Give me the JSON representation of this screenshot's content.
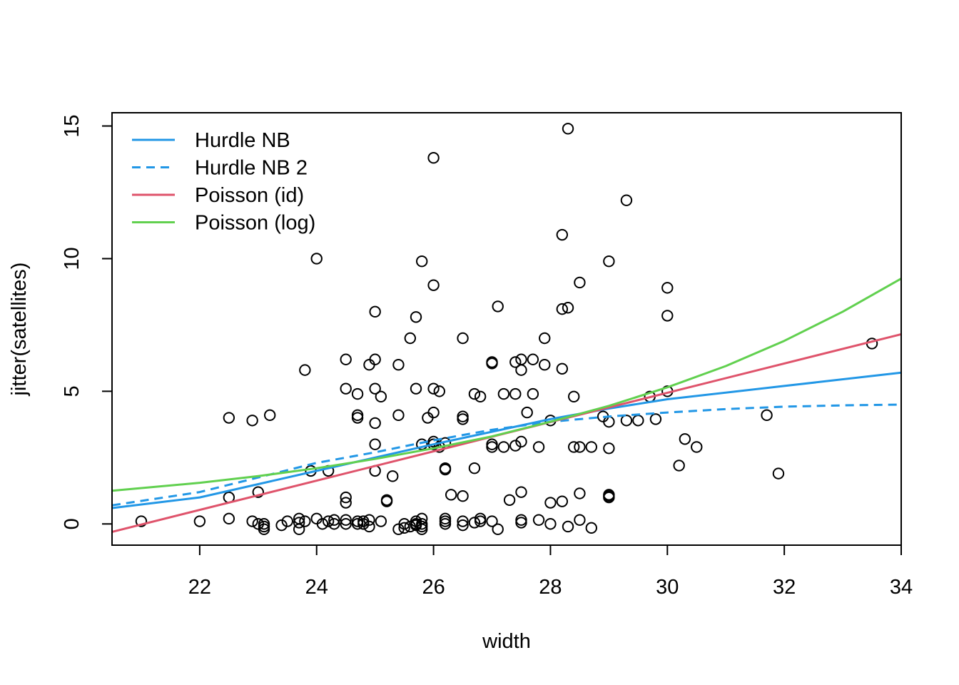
{
  "chart_data": {
    "type": "scatter",
    "title": "",
    "xlabel": "width",
    "ylabel": "jitter(satellites)",
    "xlim": [
      20.5,
      34
    ],
    "ylim": [
      -0.8,
      15.5
    ],
    "x_ticks": [
      22,
      24,
      26,
      28,
      30,
      32,
      34
    ],
    "y_ticks": [
      0,
      5,
      10,
      15
    ],
    "grid": false,
    "legend_position": "top-left",
    "points": [
      [
        21.0,
        0.1
      ],
      [
        22.0,
        0.1
      ],
      [
        22.5,
        4.0
      ],
      [
        22.5,
        1.0
      ],
      [
        22.5,
        0.2
      ],
      [
        22.9,
        3.9
      ],
      [
        22.9,
        0.1
      ],
      [
        23.0,
        1.2
      ],
      [
        23.0,
        0.0
      ],
      [
        23.1,
        -0.1
      ],
      [
        23.1,
        -0.2
      ],
      [
        23.1,
        0.0
      ],
      [
        23.2,
        4.1
      ],
      [
        23.4,
        -0.05
      ],
      [
        23.5,
        0.1
      ],
      [
        23.7,
        0.2
      ],
      [
        23.7,
        -0.2
      ],
      [
        23.7,
        0.05
      ],
      [
        23.8,
        5.8
      ],
      [
        23.8,
        0.1
      ],
      [
        23.9,
        2.0
      ],
      [
        24.0,
        10.0
      ],
      [
        24.0,
        0.2
      ],
      [
        24.1,
        0.0
      ],
      [
        24.2,
        2.0
      ],
      [
        24.2,
        0.1
      ],
      [
        24.3,
        0.15
      ],
      [
        24.3,
        0.0
      ],
      [
        24.5,
        6.2
      ],
      [
        24.5,
        5.1
      ],
      [
        24.5,
        1.0
      ],
      [
        24.5,
        0.8
      ],
      [
        24.5,
        0.15
      ],
      [
        24.5,
        0.0
      ],
      [
        24.7,
        4.9
      ],
      [
        24.7,
        4.1
      ],
      [
        24.7,
        4.0
      ],
      [
        24.7,
        0.1
      ],
      [
        24.7,
        0.0
      ],
      [
        24.8,
        0.0
      ],
      [
        24.8,
        0.1
      ],
      [
        24.9,
        6.0
      ],
      [
        24.9,
        0.15
      ],
      [
        24.9,
        -0.1
      ],
      [
        25.0,
        8.0
      ],
      [
        25.0,
        6.2
      ],
      [
        25.0,
        5.1
      ],
      [
        25.0,
        3.8
      ],
      [
        25.0,
        3.0
      ],
      [
        25.0,
        2.0
      ],
      [
        25.1,
        4.8
      ],
      [
        25.1,
        0.1
      ],
      [
        25.2,
        0.9
      ],
      [
        25.2,
        0.85
      ],
      [
        25.3,
        1.8
      ],
      [
        25.4,
        6.0
      ],
      [
        25.4,
        4.1
      ],
      [
        25.4,
        -0.2
      ],
      [
        25.5,
        0.0
      ],
      [
        25.5,
        -0.15
      ],
      [
        25.6,
        7.0
      ],
      [
        25.6,
        -0.1
      ],
      [
        25.7,
        7.8
      ],
      [
        25.7,
        5.1
      ],
      [
        25.7,
        0.0
      ],
      [
        25.7,
        0.1
      ],
      [
        25.7,
        -0.05
      ],
      [
        25.8,
        9.9
      ],
      [
        25.8,
        3.0
      ],
      [
        25.8,
        0.2
      ],
      [
        25.8,
        0.0
      ],
      [
        25.8,
        -0.1
      ],
      [
        25.8,
        -0.2
      ],
      [
        25.9,
        4.0
      ],
      [
        26.0,
        13.8
      ],
      [
        26.0,
        9.0
      ],
      [
        26.0,
        5.1
      ],
      [
        26.0,
        4.2
      ],
      [
        26.0,
        3.1
      ],
      [
        26.0,
        3.0
      ],
      [
        26.1,
        5.0
      ],
      [
        26.1,
        2.9
      ],
      [
        26.2,
        3.05
      ],
      [
        26.2,
        2.1
      ],
      [
        26.2,
        2.05
      ],
      [
        26.2,
        0.2
      ],
      [
        26.2,
        0.1
      ],
      [
        26.2,
        0.0
      ],
      [
        26.3,
        1.1
      ],
      [
        26.5,
        7.0
      ],
      [
        26.5,
        4.05
      ],
      [
        26.5,
        3.95
      ],
      [
        26.5,
        1.05
      ],
      [
        26.5,
        0.1
      ],
      [
        26.5,
        -0.05
      ],
      [
        26.7,
        4.9
      ],
      [
        26.7,
        2.1
      ],
      [
        26.7,
        0.05
      ],
      [
        26.8,
        4.8
      ],
      [
        26.8,
        0.2
      ],
      [
        26.8,
        0.1
      ],
      [
        27.0,
        6.1
      ],
      [
        27.0,
        6.05
      ],
      [
        27.0,
        3.0
      ],
      [
        27.0,
        2.9
      ],
      [
        27.0,
        0.1
      ],
      [
        27.1,
        8.2
      ],
      [
        27.1,
        -0.2
      ],
      [
        27.2,
        4.9
      ],
      [
        27.2,
        2.9
      ],
      [
        27.3,
        0.9
      ],
      [
        27.4,
        6.1
      ],
      [
        27.4,
        4.9
      ],
      [
        27.4,
        2.95
      ],
      [
        27.5,
        6.2
      ],
      [
        27.5,
        5.8
      ],
      [
        27.5,
        3.1
      ],
      [
        27.5,
        1.2
      ],
      [
        27.5,
        0.15
      ],
      [
        27.5,
        0.05
      ],
      [
        27.6,
        4.2
      ],
      [
        27.7,
        6.2
      ],
      [
        27.7,
        4.9
      ],
      [
        27.8,
        2.9
      ],
      [
        27.8,
        0.15
      ],
      [
        27.9,
        7.0
      ],
      [
        27.9,
        6.0
      ],
      [
        28.0,
        3.9
      ],
      [
        28.0,
        0.8
      ],
      [
        28.0,
        0.0
      ],
      [
        28.2,
        10.9
      ],
      [
        28.2,
        8.1
      ],
      [
        28.2,
        5.85
      ],
      [
        28.2,
        0.85
      ],
      [
        28.3,
        14.9
      ],
      [
        28.3,
        8.15
      ],
      [
        28.3,
        -0.1
      ],
      [
        28.4,
        4.8
      ],
      [
        28.4,
        2.9
      ],
      [
        28.5,
        9.1
      ],
      [
        28.5,
        2.9
      ],
      [
        28.5,
        1.15
      ],
      [
        28.5,
        0.15
      ],
      [
        28.7,
        2.9
      ],
      [
        28.7,
        -0.15
      ],
      [
        28.9,
        4.05
      ],
      [
        29.0,
        9.9
      ],
      [
        29.0,
        3.85
      ],
      [
        29.0,
        2.85
      ],
      [
        29.0,
        1.1
      ],
      [
        29.0,
        1.05
      ],
      [
        29.0,
        1.0
      ],
      [
        29.3,
        12.2
      ],
      [
        29.3,
        3.9
      ],
      [
        29.5,
        3.9
      ],
      [
        29.7,
        4.8
      ],
      [
        29.8,
        3.95
      ],
      [
        30.0,
        8.9
      ],
      [
        30.0,
        7.85
      ],
      [
        30.0,
        5.0
      ],
      [
        30.2,
        2.2
      ],
      [
        30.3,
        3.2
      ],
      [
        30.5,
        2.9
      ],
      [
        31.7,
        4.1
      ],
      [
        31.9,
        1.9
      ],
      [
        33.5,
        6.8
      ]
    ],
    "series": [
      {
        "name": "Hurdle NB",
        "color": "#2297E6",
        "dash": "solid",
        "x": [
          20.5,
          22,
          24,
          26,
          28,
          29,
          30,
          32,
          34
        ],
        "y": [
          0.6,
          1.0,
          2.0,
          3.0,
          3.95,
          4.35,
          4.7,
          5.2,
          5.7
        ]
      },
      {
        "name": "Hurdle NB 2",
        "color": "#2297E6",
        "dash": "dashed",
        "x": [
          20.5,
          22,
          23,
          24,
          25,
          26,
          27,
          28,
          29,
          30,
          31,
          32,
          33,
          34
        ],
        "y": [
          0.7,
          1.2,
          1.75,
          2.3,
          2.7,
          3.15,
          3.55,
          3.85,
          4.05,
          4.2,
          4.33,
          4.42,
          4.47,
          4.5
        ]
      },
      {
        "name": "Poisson (id)",
        "color": "#DF536B",
        "dash": "solid",
        "x": [
          20.5,
          34
        ],
        "y": [
          -0.3,
          7.15
        ]
      },
      {
        "name": "Poisson (log)",
        "color": "#61D04F",
        "dash": "solid",
        "x": [
          20.5,
          22,
          23,
          24,
          25,
          26,
          27,
          28,
          29,
          30,
          31,
          32,
          33,
          34
        ],
        "y": [
          1.25,
          1.55,
          1.8,
          2.1,
          2.45,
          2.85,
          3.3,
          3.85,
          4.45,
          5.15,
          5.95,
          6.9,
          8.0,
          9.25
        ]
      }
    ]
  }
}
